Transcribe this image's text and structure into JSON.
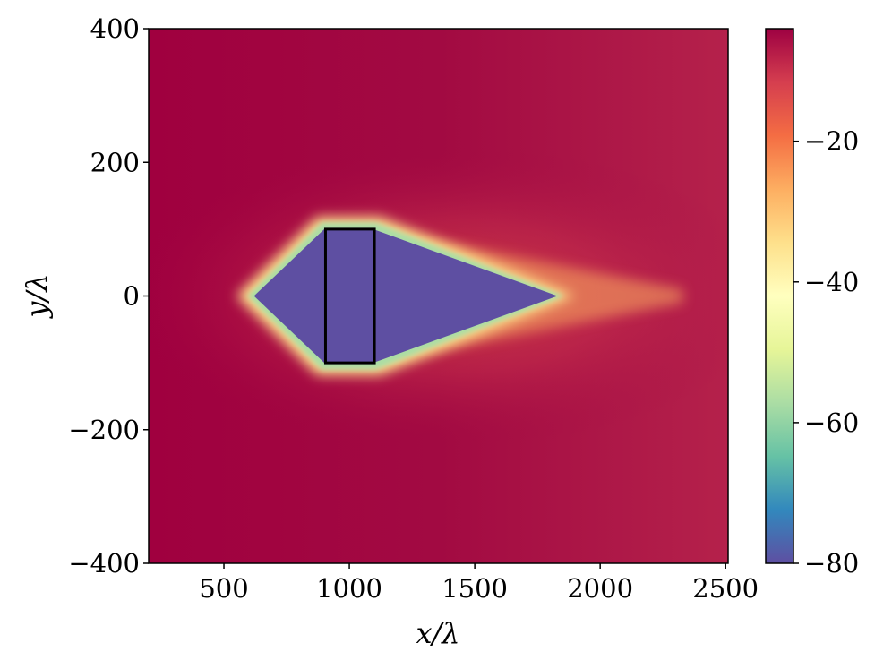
{
  "chart_data": {
    "type": "heatmap",
    "title": "",
    "xlabel": "x/λ",
    "ylabel": "y/λ",
    "xlim": [
      200,
      2510
    ],
    "ylim": [
      -400,
      400
    ],
    "xticks": [
      500,
      1000,
      1500,
      2000,
      2500
    ],
    "yticks": [
      400,
      200,
      0,
      -200,
      -400
    ],
    "xtick_labels": [
      "500",
      "1000",
      "1500",
      "2000",
      "2500"
    ],
    "ytick_labels": [
      "400",
      "200",
      "0",
      "−200",
      "−400"
    ],
    "colorbar": {
      "range": [
        -80,
        -4
      ],
      "ticks": [
        -20,
        -40,
        -60,
        -80
      ],
      "tick_labels": [
        "−20",
        "−40",
        "−60",
        "−80"
      ],
      "colormap": "Spectral"
    },
    "background_level": -6,
    "shadow_region": {
      "value": -80,
      "vertices": [
        [
          620,
          0
        ],
        [
          900,
          100
        ],
        [
          1095,
          100
        ],
        [
          1830,
          0
        ],
        [
          1095,
          -100
        ],
        [
          900,
          -100
        ]
      ]
    },
    "obstacle_rectangle": {
      "x": [
        905,
        1100
      ],
      "y": [
        -100,
        100
      ],
      "edge_color": "#000000"
    }
  }
}
